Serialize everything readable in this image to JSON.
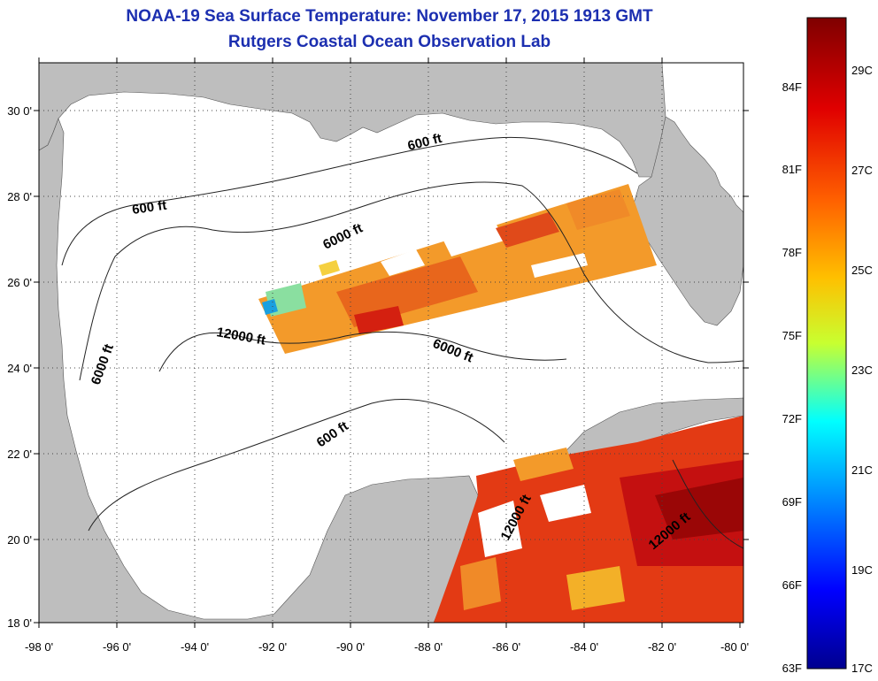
{
  "title": "NOAA-19 Sea Surface Temperature:  November 17, 2015 1913 GMT",
  "subtitle": "Rutgers Coastal Ocean Observation Lab",
  "map": {
    "lon_labels": [
      "-98 0'",
      "-96 0'",
      "-94 0'",
      "-92 0'",
      "-90 0'",
      "-88 0'",
      "-86 0'",
      "-84 0'",
      "-82 0'",
      "-80 0'"
    ],
    "lat_labels": [
      "30 0'",
      "28 0'",
      "26 0'",
      "24 0'",
      "22 0'",
      "20 0'",
      "18 0'"
    ],
    "contour_labels": [
      "600 ft",
      "600 ft",
      "600 ft",
      "6000 ft",
      "6000 ft",
      "6000 ft",
      "12000 ft",
      "12000 ft",
      "12000 ft"
    ],
    "land_color": "#bebebe",
    "ocean_color": "#ffffff",
    "grid": "dotted"
  },
  "colorbar": {
    "fahrenheit_labels": [
      "84F",
      "81F",
      "78F",
      "75F",
      "72F",
      "69F",
      "66F",
      "63F"
    ],
    "celsius_labels": [
      "29C",
      "27C",
      "25C",
      "23C",
      "21C",
      "19C",
      "17C"
    ],
    "colors": [
      "#7f0000",
      "#ff0000",
      "#ff8000",
      "#ffff00",
      "#80ff80",
      "#00ffff",
      "#0080ff",
      "#0000ff",
      "#00008f"
    ]
  }
}
